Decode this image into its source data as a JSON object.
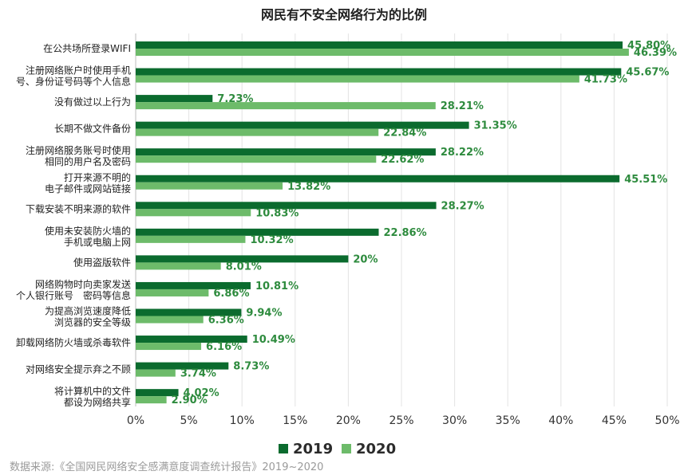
{
  "chart_data": {
    "type": "bar",
    "orientation": "horizontal",
    "title": "网民有不安全网络行为的比例",
    "categories": [
      [
        "在公共场所登录WIFI"
      ],
      [
        "注册网络账户时使用手机",
        "号、身份证号码等个人信息"
      ],
      [
        "没有做过以上行为"
      ],
      [
        "长期不做文件备份"
      ],
      [
        "注册网络服务账号时使用",
        "相同的用户名及密码"
      ],
      [
        "打开来源不明的",
        "电子邮件或网站链接"
      ],
      [
        "下载安装不明来源的软件"
      ],
      [
        "使用未安装防火墙的",
        "手机或电脑上网"
      ],
      [
        "使用盗版软件"
      ],
      [
        "网络购物时向卖家发送",
        "个人银行账号　密码等信息"
      ],
      [
        "为提高浏览速度降低",
        "浏览器的安全等级"
      ],
      [
        "卸载网络防火墙或杀毒软件"
      ],
      [
        "对网络安全提示弃之不顾"
      ],
      [
        "将计算机中的文件",
        "都设为网络共享"
      ]
    ],
    "series": [
      {
        "name": "2019",
        "color": "#0b6b2e",
        "values": [
          45.8,
          45.67,
          7.23,
          31.35,
          28.22,
          45.51,
          28.27,
          22.86,
          20,
          10.81,
          9.94,
          10.49,
          8.73,
          4.02
        ],
        "labels": [
          "45.80%",
          "45.67%",
          "7.23%",
          "31.35%",
          "28.22%",
          "45.51%",
          "28.27%",
          "22.86%",
          "20%",
          "10.81%",
          "9.94%",
          "10.49%",
          "8.73%",
          "4.02%"
        ]
      },
      {
        "name": "2020",
        "color": "#6dbb6a",
        "values": [
          46.39,
          41.73,
          28.21,
          22.84,
          22.62,
          13.82,
          10.83,
          10.32,
          8.01,
          6.86,
          6.36,
          6.16,
          3.74,
          2.9
        ],
        "labels": [
          "46.39%",
          "41.73%",
          "28.21%",
          "22.84%",
          "22.62%",
          "13.82%",
          "10.83%",
          "10.32%",
          "8.01%",
          "6.86%",
          "6.36%",
          "6.16%",
          "3.74%",
          "2.90%"
        ]
      }
    ],
    "xlim": [
      0,
      50
    ],
    "xticks": [
      "0%",
      "5%",
      "10%",
      "15%",
      "20%",
      "25%",
      "30%",
      "35%",
      "40%",
      "45%",
      "50%"
    ],
    "grid": true,
    "legend_position": "bottom",
    "data_label_color": "#2e8b3e"
  },
  "source_note": "数据来源:《全国网民网络安全感满意度调查统计报告》2019~2020"
}
